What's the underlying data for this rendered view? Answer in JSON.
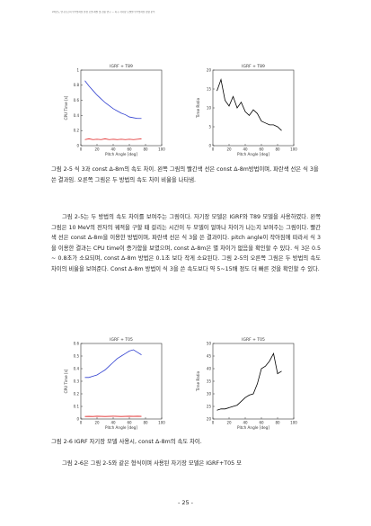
{
  "header": "2차년도 연구보고서  우주방사선 환경 모델 개발 및 검증 연구 — 지구 자기장 모델별 우주방사선 영향 분석",
  "chart_data": [
    {
      "id": "chart1",
      "type": "line",
      "title": "IGRF + T89",
      "xlabel": "Pitch Angle [deg]",
      "ylabel": "CPU Time [s]",
      "xlim": [
        0,
        100
      ],
      "ylim": [
        0,
        1.0
      ],
      "xticks": [
        0,
        20,
        40,
        60,
        80,
        100
      ],
      "yticks": [
        0.0,
        0.2,
        0.4,
        0.6,
        0.8,
        1.0
      ],
      "series": [
        {
          "color": "#2f3fd0",
          "x": [
            5,
            10,
            15,
            20,
            25,
            30,
            35,
            40,
            45,
            50,
            55,
            60,
            65,
            70,
            75
          ],
          "y": [
            0.86,
            0.79,
            0.73,
            0.67,
            0.62,
            0.57,
            0.53,
            0.49,
            0.46,
            0.43,
            0.41,
            0.38,
            0.37,
            0.36,
            0.36
          ]
        },
        {
          "color": "#e02424",
          "x": [
            5,
            10,
            15,
            20,
            25,
            30,
            35,
            40,
            45,
            50,
            55,
            60,
            65,
            70,
            75
          ],
          "y": [
            0.08,
            0.09,
            0.08,
            0.085,
            0.08,
            0.09,
            0.08,
            0.085,
            0.08,
            0.085,
            0.08,
            0.085,
            0.08,
            0.085,
            0.09
          ]
        }
      ]
    },
    {
      "id": "chart2",
      "type": "line",
      "title": "IGRF + T89",
      "xlabel": "Pitch Angle [deg]",
      "ylabel": "Time Ratio",
      "xlim": [
        0,
        100
      ],
      "ylim": [
        0,
        20
      ],
      "xticks": [
        0,
        20,
        40,
        60,
        80,
        100
      ],
      "yticks": [
        0,
        5,
        10,
        15,
        20
      ],
      "series": [
        {
          "color": "#000000",
          "x": [
            5,
            10,
            15,
            20,
            25,
            30,
            35,
            40,
            45,
            50,
            55,
            60,
            65,
            70,
            75,
            80,
            85
          ],
          "y": [
            14.5,
            17.5,
            12,
            10.5,
            13,
            10,
            11.5,
            9,
            8,
            9.5,
            8.5,
            6.5,
            6,
            5.5,
            5.5,
            5,
            4
          ]
        }
      ]
    },
    {
      "id": "chart3",
      "type": "line",
      "title": "IGRF + T05",
      "xlabel": "Pitch Angle [deg]",
      "ylabel": "CPU Time [s]",
      "xlim": [
        0,
        100
      ],
      "ylim": [
        0,
        0.6
      ],
      "xticks": [
        0,
        20,
        40,
        60,
        80,
        100
      ],
      "yticks": [
        0.0,
        0.1,
        0.2,
        0.3,
        0.4,
        0.5,
        0.6
      ],
      "series": [
        {
          "color": "#2f3fd0",
          "x": [
            5,
            10,
            15,
            20,
            25,
            30,
            35,
            40,
            45,
            50,
            55,
            60,
            65,
            70,
            75
          ],
          "y": [
            0.33,
            0.33,
            0.34,
            0.35,
            0.37,
            0.39,
            0.42,
            0.45,
            0.48,
            0.5,
            0.52,
            0.54,
            0.55,
            0.53,
            0.51
          ]
        },
        {
          "color": "#e02424",
          "x": [
            5,
            10,
            15,
            20,
            25,
            30,
            35,
            40,
            45,
            50,
            55,
            60,
            65,
            70,
            75
          ],
          "y": [
            0.02,
            0.021,
            0.02,
            0.022,
            0.021,
            0.02,
            0.021,
            0.022,
            0.021,
            0.02,
            0.021,
            0.022,
            0.021,
            0.022,
            0.021
          ]
        }
      ]
    },
    {
      "id": "chart4",
      "type": "line",
      "title": "IGRF + T05",
      "xlabel": "Pitch Angle [deg]",
      "ylabel": "Time Ratio",
      "xlim": [
        0,
        100
      ],
      "ylim": [
        20,
        50
      ],
      "xticks": [
        0,
        20,
        40,
        60,
        80,
        100
      ],
      "yticks": [
        20,
        25,
        30,
        35,
        40,
        45,
        50
      ],
      "series": [
        {
          "color": "#000000",
          "x": [
            5,
            10,
            15,
            20,
            25,
            30,
            35,
            40,
            45,
            50,
            55,
            60,
            65,
            70,
            75,
            80,
            85
          ],
          "y": [
            23.5,
            24,
            24,
            24.5,
            25,
            25.5,
            27,
            28.5,
            29.5,
            30,
            34,
            40,
            41,
            43,
            46,
            38,
            39
          ]
        }
      ]
    }
  ],
  "caption1": "그림 2-5 식 3과 const Δ-8m의 속도 차이. 왼쪽 그림의 빨간색 선은 const Δ-8m방법이며, 파란색 선은 식 3을 쓴 결과임. 오른쪽 그림은 두 방법의 속도 차이 비율을 나타냄.",
  "para1": "그림 2-5는 두 방법의 속도 차이를 보여주는 그림이다. 자기장 모델은 IGRF와 T89 모델을 사용하였다. 왼쪽 그림은 10 MeV의 전자의 궤적을 구할 때 걸리는 시간이 두 모델이 얼마나 차이가 나는지 보여주는 그림이다. 빨간색 선은 const Δ-8m을 이용한 방법이며, 파란색 선은 식 3을 쓴 결과이다. pitch angle이 작아짐에 따라서 식 3을 이용한 결과는 CPU time이 증가함을 보였으며, const Δ-8m은 별 차이가 없음을 확인할 수 있다. 식 3은 0.5 ~ 0.8초가 소요되며, const Δ-8m 방법은 0.1초 보다 작게 소요된다. 그림 2-5의 오른쪽 그림은 두 방법의 속도 차이의 비율을 보여준다. Const Δ-8m 방법이 식 3을 쓴 속도보다 약 5~15배 정도 더 빠른 것을 확인할 수 있다.",
  "caption2": "그림 2-6 IGRF 자기장 모델 사용시, const Δ-8m의 속도 차이.",
  "para2": "그림 2-6은 그림 2-5와 같은 형식이며 사용된 자기장 모델은 IGRF+T05 모",
  "page_number": "- 25 -"
}
